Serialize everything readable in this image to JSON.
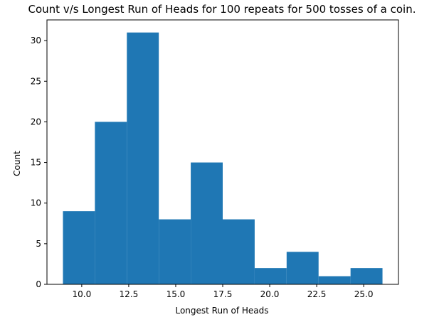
{
  "chart_data": {
    "type": "bar",
    "title": "Count v/s Longest Run of Heads for 100 repeats for 500 tosses of a coin.",
    "xlabel": "Longest Run of Heads",
    "ylabel": "Count",
    "bin_edges": [
      9.0,
      10.7,
      12.4,
      14.1,
      15.8,
      17.5,
      19.2,
      20.9,
      22.6,
      24.3,
      26.0
    ],
    "values": [
      9,
      20,
      31,
      8,
      15,
      8,
      2,
      4,
      1,
      2
    ],
    "xlim": [
      8.15,
      26.85
    ],
    "ylim": [
      0,
      32.55
    ],
    "xticks": [
      10.0,
      12.5,
      15.0,
      17.5,
      20.0,
      22.5,
      25.0
    ],
    "xtick_labels": [
      "10.0",
      "12.5",
      "15.0",
      "17.5",
      "20.0",
      "22.5",
      "25.0"
    ],
    "yticks": [
      0,
      5,
      10,
      15,
      20,
      25,
      30
    ],
    "ytick_labels": [
      "0",
      "5",
      "10",
      "15",
      "20",
      "25",
      "30"
    ],
    "grid": false,
    "bar_color": "#1f77b4"
  }
}
